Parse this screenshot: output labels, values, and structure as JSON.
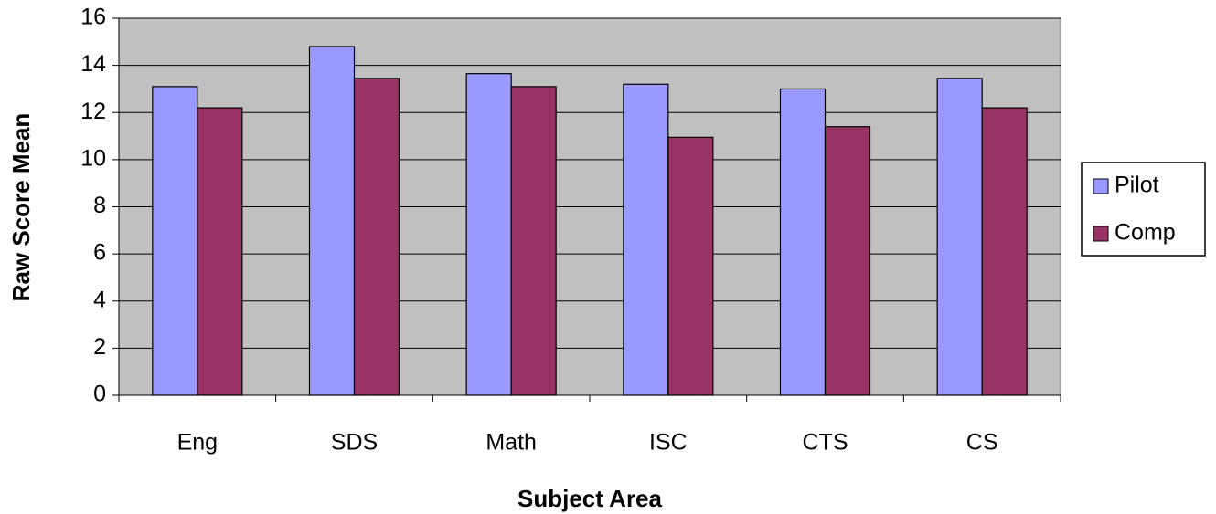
{
  "chart_data": {
    "type": "bar",
    "xlabel": "Subject Area",
    "ylabel": "Raw Score Mean",
    "categories": [
      "Eng",
      "SDS",
      "Math",
      "ISC",
      "CTS",
      "CS"
    ],
    "series": [
      {
        "name": "Pilot",
        "color": "#9999ff",
        "values": [
          13.1,
          14.8,
          13.65,
          13.2,
          13.0,
          13.45
        ]
      },
      {
        "name": "Comp",
        "color": "#993366",
        "values": [
          12.2,
          13.45,
          13.1,
          10.95,
          11.4,
          12.2
        ]
      }
    ],
    "ylim": [
      0,
      16
    ],
    "yticks": [
      0,
      2,
      4,
      6,
      8,
      10,
      12,
      14,
      16
    ],
    "grid": true
  }
}
